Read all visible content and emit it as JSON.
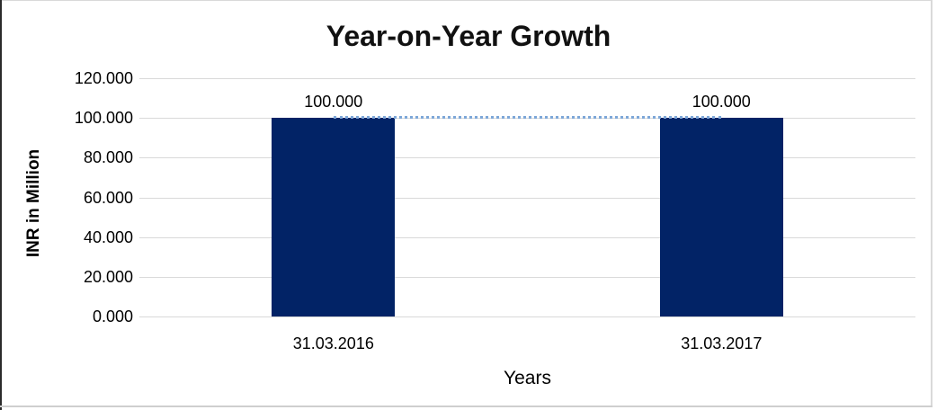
{
  "chart_data": {
    "type": "bar",
    "title": "Year-on-Year Growth",
    "xlabel": "Years",
    "ylabel": "INR in Million",
    "categories": [
      "31.03.2016",
      "31.03.2017"
    ],
    "series": [
      {
        "name": "INR in Million (bars)",
        "type": "bar",
        "values": [
          100.0,
          100.0
        ],
        "data_labels": [
          "100.000",
          "100.000"
        ],
        "color": "#022366"
      },
      {
        "name": "growth trend (dotted line)",
        "type": "line",
        "values": [
          100.0,
          100.0
        ],
        "color": "#7da7d8",
        "line_style": "dotted"
      }
    ],
    "ylim": [
      0,
      120
    ],
    "yticks": [
      {
        "value": 120,
        "label": "120.000"
      },
      {
        "value": 100,
        "label": "100.000"
      },
      {
        "value": 80,
        "label": "80.000"
      },
      {
        "value": 60,
        "label": "60.000"
      },
      {
        "value": 40,
        "label": "40.000"
      },
      {
        "value": 20,
        "label": "20.000"
      },
      {
        "value": 0,
        "label": "0.000"
      }
    ],
    "grid": true,
    "gridline_color": "#d9d9d9",
    "legend_position": "none",
    "background_color": "#ffffff",
    "frame_left_color": "#2b2b2b",
    "frame_color": "#d9d9d9"
  }
}
